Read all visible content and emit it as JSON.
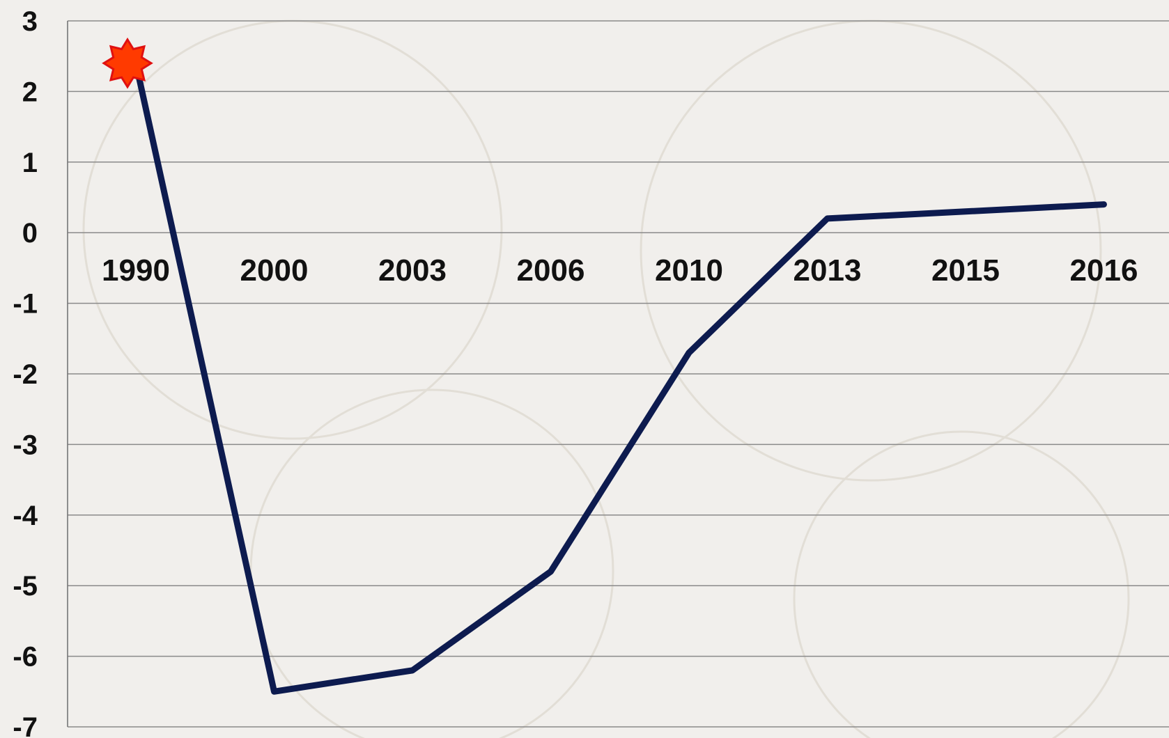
{
  "colors": {
    "line": "#0d1b4f",
    "marker_fill": "#ff3a00",
    "marker_stroke": "#e01010",
    "background": "#f1efec"
  },
  "chart_data": {
    "type": "line",
    "categories": [
      "1990",
      "2000",
      "2003",
      "2006",
      "2010",
      "2013",
      "2015",
      "2016"
    ],
    "series": [
      {
        "values": [
          2.4,
          -6.5,
          -6.2,
          -4.8,
          -1.7,
          0.2,
          0.3,
          0.4
        ]
      }
    ],
    "ylim": [
      -7,
      3
    ],
    "yticks": [
      "3",
      "2",
      "1",
      "0",
      "-1",
      "-2",
      "-3",
      "-4",
      "-5",
      "-6",
      "-7"
    ],
    "grid": true,
    "marker": {
      "category": "1990",
      "value": 2.4,
      "shape": "star"
    },
    "title": "",
    "xlabel": "",
    "ylabel": ""
  }
}
